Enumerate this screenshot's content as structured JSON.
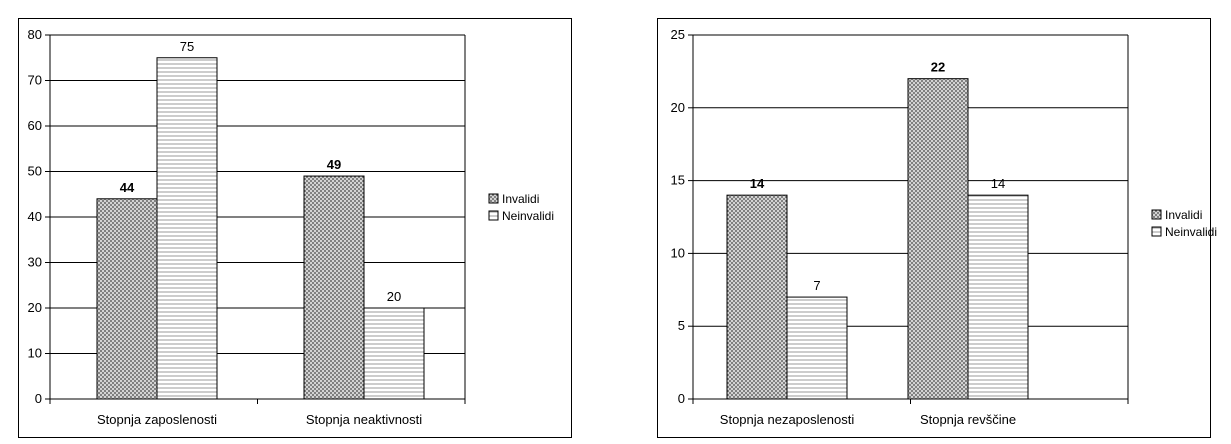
{
  "chart_data": [
    {
      "type": "bar",
      "categories": [
        "Stopnja zaposlenosti",
        "Stopnja neaktivnosti"
      ],
      "series": [
        {
          "name": "Invalidi",
          "values": [
            44,
            49
          ]
        },
        {
          "name": "Neinvalidi",
          "values": [
            75,
            20
          ]
        }
      ],
      "ylim": [
        0,
        80
      ],
      "yticks": [
        0,
        10,
        20,
        30,
        40,
        50,
        60,
        70,
        80
      ],
      "grid": true,
      "legend": "right"
    },
    {
      "type": "bar",
      "categories": [
        "Stopnja nezaposlenosti",
        "Stopnja revščine"
      ],
      "series": [
        {
          "name": "Invalidi",
          "values": [
            14,
            22
          ]
        },
        {
          "name": "Neinvalidi",
          "values": [
            7,
            14
          ]
        }
      ],
      "ylim": [
        0,
        25
      ],
      "yticks": [
        0,
        5,
        10,
        15,
        20,
        25
      ],
      "grid": true,
      "legend": "right"
    }
  ]
}
